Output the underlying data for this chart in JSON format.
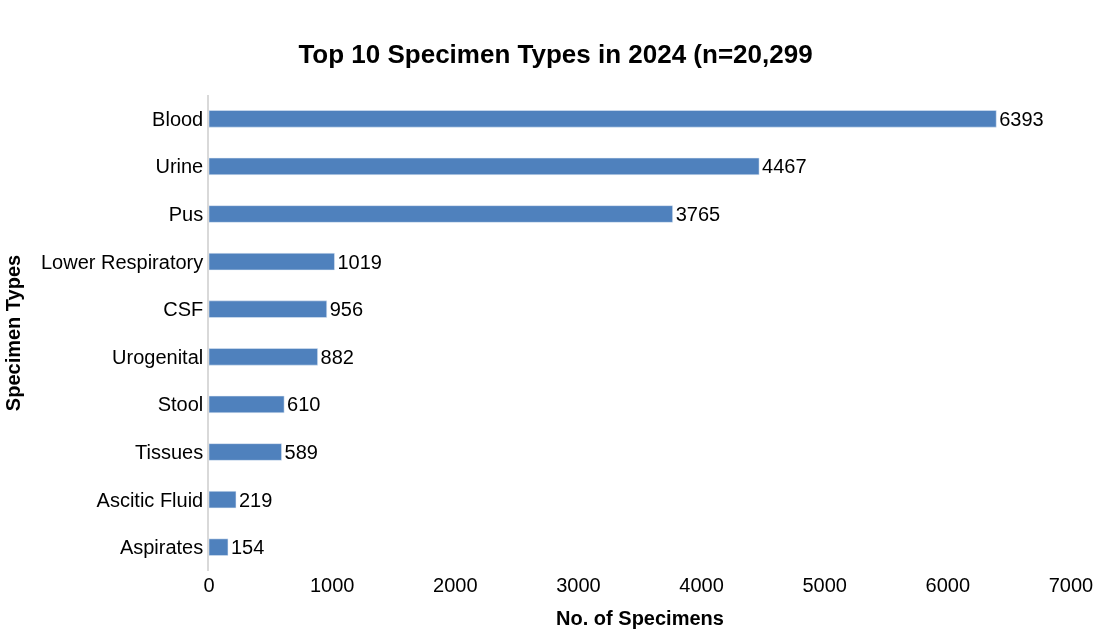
{
  "chart_data": {
    "type": "bar",
    "orientation": "horizontal",
    "title": "Top 10 Specimen Types in 2024 (n=20,299",
    "xlabel": "No. of Specimens",
    "ylabel": "Specimen Types",
    "categories": [
      "Blood",
      "Urine",
      "Pus",
      "Lower Respiratory",
      "CSF",
      "Urogenital",
      "Stool",
      "Tissues",
      "Ascitic Fluid",
      "Aspirates"
    ],
    "values": [
      6393,
      4467,
      3765,
      1019,
      956,
      882,
      610,
      589,
      219,
      154
    ],
    "color": "#4f81bd",
    "xlim": [
      0,
      7000
    ],
    "xticks": [
      0,
      1000,
      2000,
      3000,
      4000,
      5000,
      6000,
      7000
    ],
    "data_labels": true
  }
}
